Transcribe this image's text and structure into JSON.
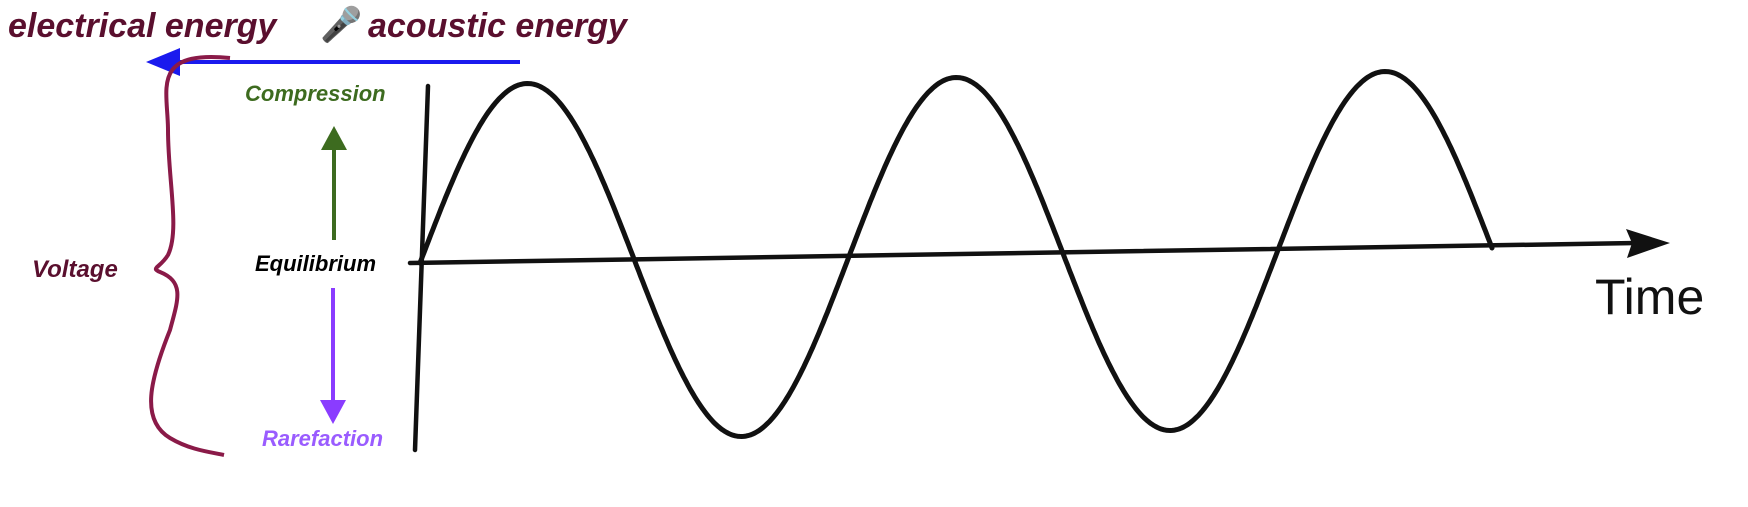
{
  "header": {
    "left_text": "electrical energy",
    "icon": "microphone-icon",
    "icon_glyph": "🎤",
    "right_text": "acoustic energy"
  },
  "labels": {
    "voltage": "Voltage",
    "compression": "Compression",
    "equilibrium": "Equilibrium",
    "rarefaction": "Rarefaction",
    "time": "Time"
  },
  "colors": {
    "title": "#5a0f2e",
    "brace": "#8a1a48",
    "blue_arrow": "#1a1aee",
    "compression": "#3d6b1f",
    "equilibrium": "#000000",
    "rarefaction": "#9a5cff",
    "rarefaction_arrow": "#8a3cff",
    "wave": "#111111"
  },
  "wave": {
    "cycles": 2.5
  }
}
